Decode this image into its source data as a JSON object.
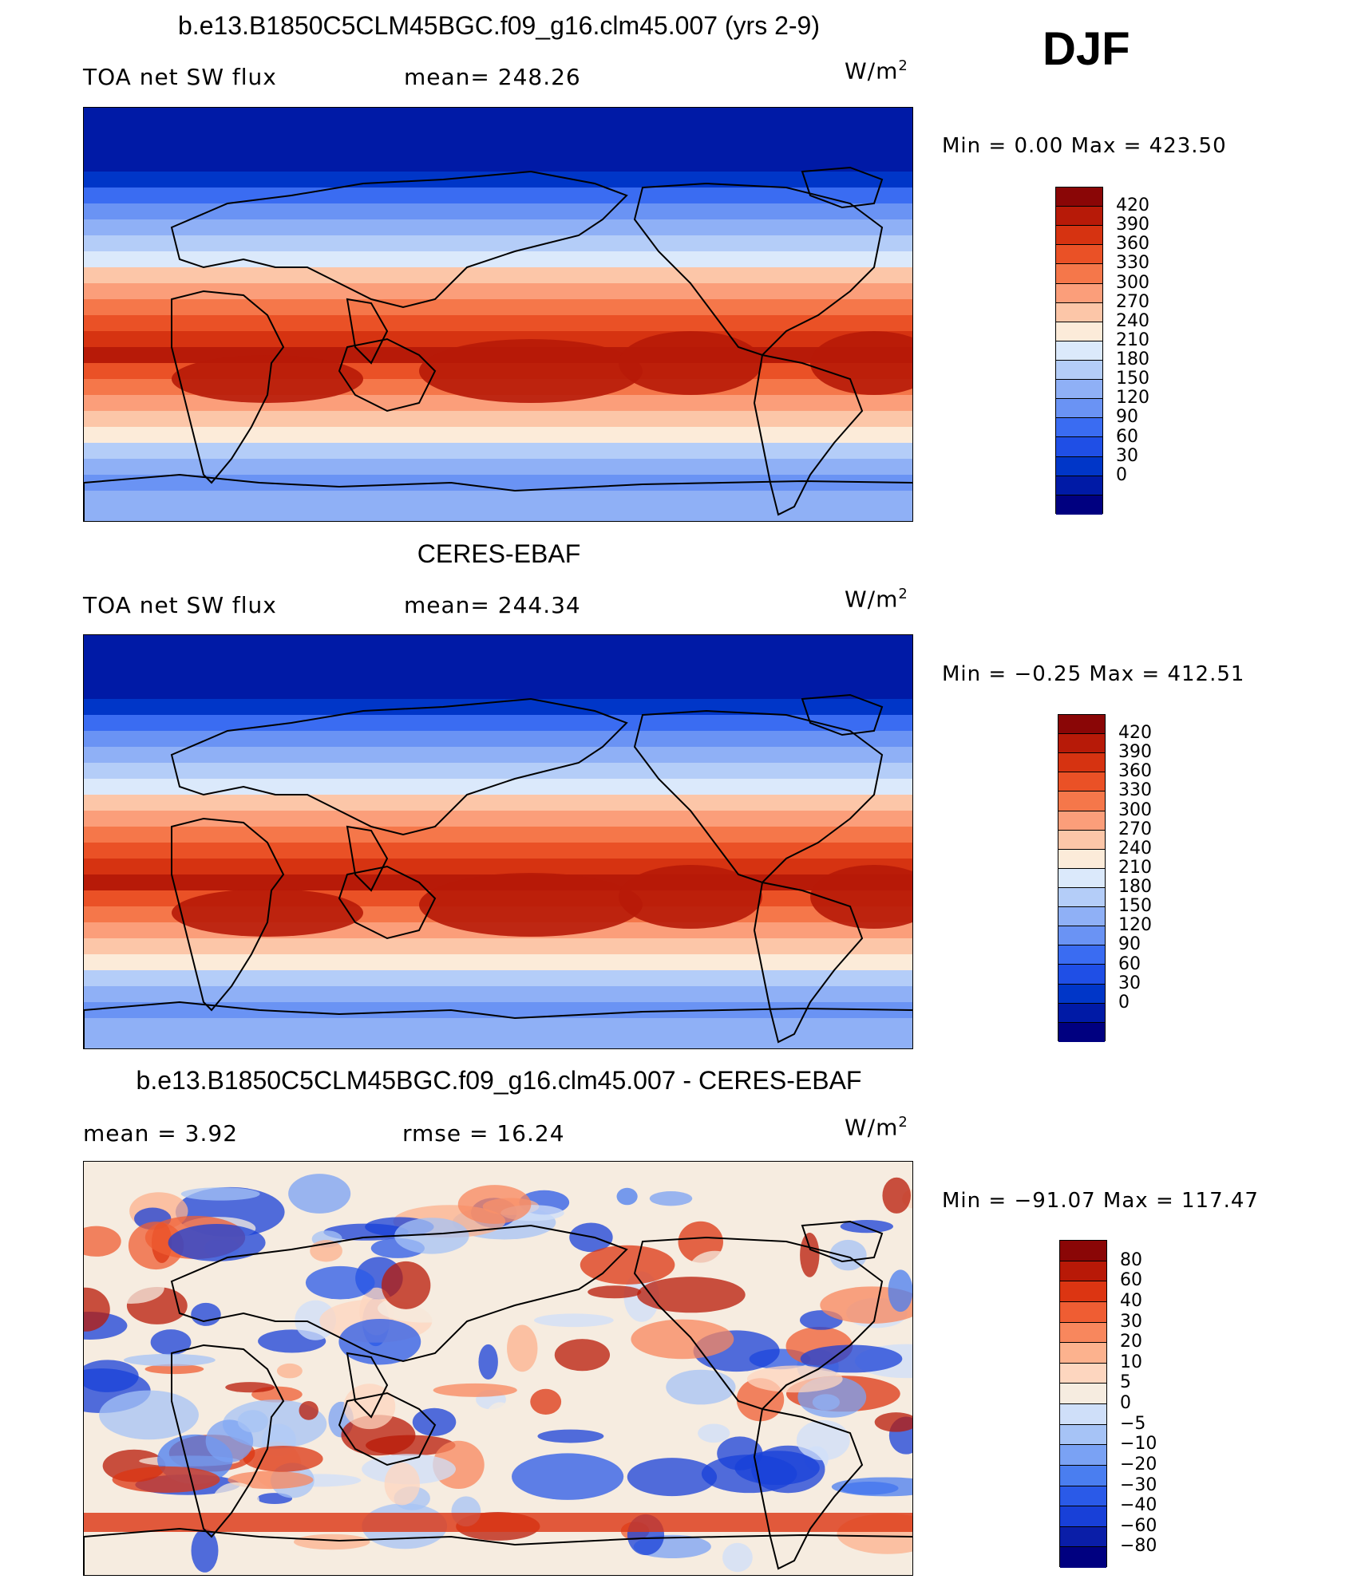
{
  "figure": {
    "season": "DJF",
    "unit_base": "W/m",
    "unit_exp": "2"
  },
  "colors": {
    "abs_palette": [
      "#000080",
      "#001aa6",
      "#0036c8",
      "#1f4fe6",
      "#3a6cf2",
      "#6a93f4",
      "#8fb0f6",
      "#b4cdf8",
      "#dbe9fb",
      "#fcebd9",
      "#fcc6a8",
      "#fb9e7a",
      "#f5774a",
      "#ea5126",
      "#d63311",
      "#b71a08",
      "#8a0606"
    ],
    "diff_palette": [
      "#000080",
      "#0a1ea8",
      "#1840d8",
      "#2a5ae8",
      "#4a7ef0",
      "#7aa2f4",
      "#a6c3f6",
      "#cfdff9",
      "#f6ece0",
      "#fdd6bf",
      "#fcb28e",
      "#f8875d",
      "#ef5d33",
      "#dc3512",
      "#b81907",
      "#8a0606"
    ]
  },
  "panels": [
    {
      "title": "b.e13.B1850C5CLM45BGC.f09_g16.clm45.007 (yrs 2-9)",
      "left_label": "TOA net SW flux",
      "mid_label": "mean= 248.26",
      "minmax": "Min =    0.00 Max = 423.50",
      "colorbar_ticks": [
        "420",
        "390",
        "360",
        "330",
        "300",
        "270",
        "240",
        "210",
        "180",
        "150",
        "120",
        "90",
        "60",
        "30",
        "0"
      ],
      "map_icon": "world-map"
    },
    {
      "title": "CERES-EBAF",
      "left_label": "TOA net SW flux",
      "mid_label": "mean= 244.34",
      "minmax": "Min =  −0.25 Max = 412.51",
      "colorbar_ticks": [
        "420",
        "390",
        "360",
        "330",
        "300",
        "270",
        "240",
        "210",
        "180",
        "150",
        "120",
        "90",
        "60",
        "30",
        "0"
      ],
      "map_icon": "world-map"
    },
    {
      "title": "b.e13.B1850C5CLM45BGC.f09_g16.clm45.007 - CERES-EBAF",
      "left_label": "mean =     3.92",
      "mid_label": "rmse =    16.24",
      "minmax": "Min = −91.07 Max = 117.47",
      "colorbar_ticks": [
        "80",
        "60",
        "40",
        "30",
        "20",
        "10",
        "5",
        "0",
        "−5",
        "−10",
        "−20",
        "−30",
        "−40",
        "−60",
        "−80"
      ],
      "map_icon": "world-map"
    }
  ]
}
